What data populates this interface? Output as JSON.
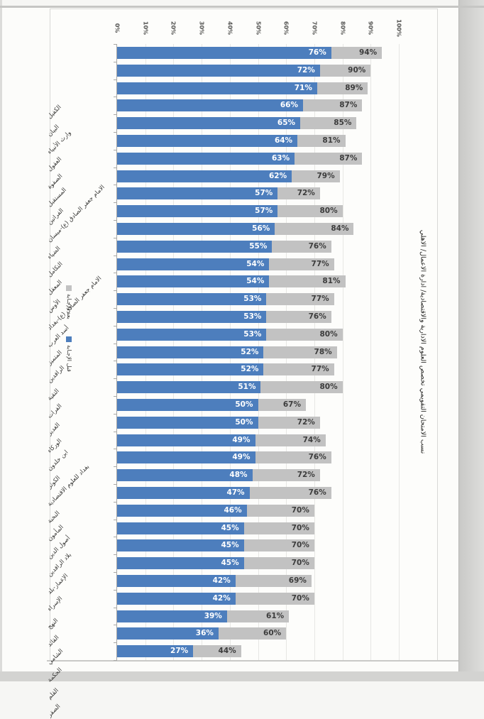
{
  "chart_data": {
    "type": "bar",
    "title": "نسب الامتحان التقويمي تخصص العلوم الادارية والاقتصادية/ ادارة الاعمال/ الاهلي",
    "orientation": "photo of a vertical column chart rotated 90 degrees clockwise; bars appear horizontal, all text rotated",
    "categories": [
      "الكفيل",
      "البيان",
      "وارث الأنبياء",
      "العقول",
      "الصفوة",
      "المستقبل",
      "الفراتين",
      "الامام جعفر الصادق (ع)-ميسان",
      "الضياء",
      "التكامل",
      "المعقل",
      "الأوس",
      "الامام جعفر الصادق (ع)-بغداد",
      "أسد العرب",
      "المتميز",
      "الرافدين",
      "التقية",
      "الفرات",
      "الغدير",
      "الوركاء",
      "ابن خلدون",
      "الكوثر",
      "بغداد للعلوم الاقتصادية",
      "النخبة",
      "المأمون",
      "أصول الدين",
      "بلاد الرافدين",
      "الإعمار-بلد",
      "الإسراء",
      "النهج",
      "القائد",
      "الشامي",
      "الحكمة",
      "القلم",
      "الصقر"
    ],
    "series": [
      {
        "name": "قبل الإجـابة",
        "color": "#4d7ebd",
        "values": [
          76,
          72,
          71,
          66,
          65,
          64,
          63,
          62,
          57,
          57,
          56,
          55,
          54,
          54,
          53,
          53,
          53,
          52,
          52,
          51,
          50,
          50,
          49,
          49,
          48,
          47,
          46,
          45,
          45,
          45,
          42,
          42,
          39,
          36,
          27
        ]
      },
      {
        "name": "بعد الإجـابة",
        "color": "#c2c2c2",
        "values": [
          94,
          90,
          89,
          87,
          85,
          81,
          87,
          79,
          72,
          80,
          84,
          76,
          77,
          81,
          77,
          76,
          80,
          78,
          77,
          80,
          67,
          72,
          74,
          76,
          72,
          76,
          70,
          70,
          70,
          70,
          69,
          70,
          61,
          60,
          44
        ]
      }
    ],
    "value_label_format": "{v}%",
    "axis_ticks": [
      "0%",
      "10%",
      "20%",
      "30%",
      "40%",
      "50%",
      "60%",
      "70%",
      "80%",
      "90%",
      "100%"
    ],
    "xlim": [
      0,
      100
    ],
    "grid": true,
    "legend_position": "left edge of photo (bottom of original chart)"
  },
  "legend": {
    "after_label": "بعد الإجـابة",
    "before_label": "قبل الإجـابة"
  },
  "colors": {
    "before_blue": "#4d7ebd",
    "after_gray": "#c2c2c2",
    "gridline": "#e7e7e4",
    "axis": "#a8a8a6",
    "value_text_dark": "#3c3c3c",
    "value_text_light": "#ffffff"
  }
}
